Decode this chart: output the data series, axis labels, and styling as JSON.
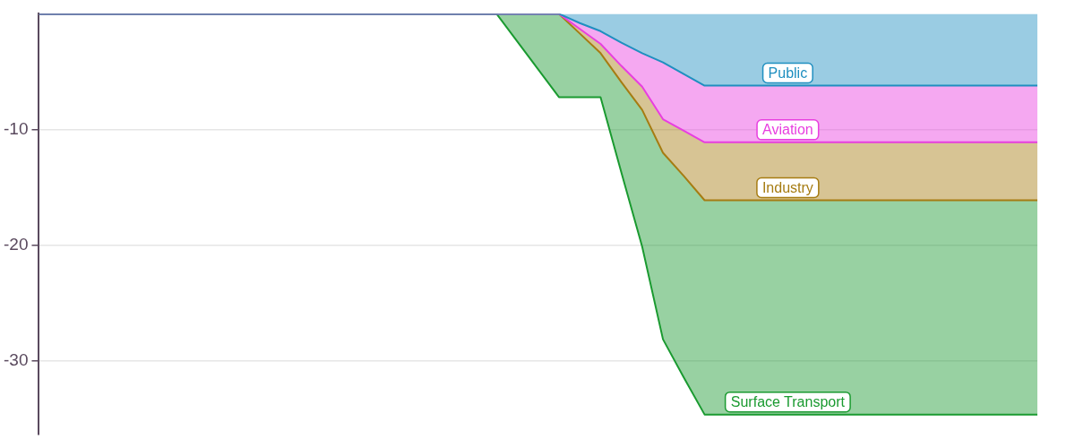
{
  "chart_data": {
    "type": "area",
    "stacked": true,
    "tick_labels": "y",
    "grid": "y",
    "legend": false,
    "categories": [
      null,
      null,
      null,
      null,
      null,
      null,
      null,
      null,
      null,
      null,
      null,
      null,
      null,
      null,
      null,
      null,
      null,
      null,
      null,
      null,
      null,
      null,
      null,
      null,
      null,
      null,
      null,
      null,
      null,
      null,
      null,
      null,
      null,
      null,
      null,
      null,
      null,
      null,
      null,
      null,
      null,
      null,
      null,
      null,
      null,
      null,
      null,
      null,
      null
    ],
    "ylim": [
      -36.3,
      0
    ],
    "yticks": [
      -30,
      -20,
      -10
    ],
    "series": [
      {
        "name": "Public",
        "color": "#1f8fc0",
        "values": [
          0,
          0,
          0,
          0,
          0,
          0,
          0,
          0,
          0,
          0,
          0,
          0,
          0,
          0,
          0,
          0,
          0,
          0,
          0,
          0,
          0,
          0,
          0,
          0,
          0,
          0,
          -0.8,
          -1.5,
          -2.5,
          -3.4,
          -4.2,
          -5.2,
          -6.2,
          -6.2,
          -6.2,
          -6.2,
          -6.2,
          -6.2,
          -6.2,
          -6.2,
          -6.2,
          -6.2,
          -6.2,
          -6.2,
          -6.2,
          -6.2,
          -6.2,
          -6.2,
          -6.2
        ]
      },
      {
        "name": "Aviation",
        "color": "#e83ee0",
        "values": [
          0,
          0,
          0,
          0,
          0,
          0,
          0,
          0,
          0,
          0,
          0,
          0,
          0,
          0,
          0,
          0,
          0,
          0,
          0,
          0,
          0,
          0,
          0,
          0,
          0,
          0,
          -0.5,
          -1.1,
          -2.0,
          -2.9,
          -4.9,
          -4.9,
          -4.9,
          -4.9,
          -4.9,
          -4.9,
          -4.9,
          -4.9,
          -4.9,
          -4.9,
          -4.9,
          -4.9,
          -4.9,
          -4.9,
          -4.9,
          -4.9,
          -4.9,
          -4.9,
          -4.9
        ]
      },
      {
        "name": "Industry",
        "color": "#a67c12",
        "values": [
          0,
          0,
          0,
          0,
          0,
          0,
          0,
          0,
          0,
          0,
          0,
          0,
          0,
          0,
          0,
          0,
          0,
          0,
          0,
          0,
          0,
          0,
          0,
          0,
          0,
          0,
          -0.4,
          -0.8,
          -1.4,
          -2.0,
          -2.9,
          -3.9,
          -5.0,
          -5.0,
          -5.0,
          -5.0,
          -5.0,
          -5.0,
          -5.0,
          -5.0,
          -5.0,
          -5.0,
          -5.0,
          -5.0,
          -5.0,
          -5.0,
          -5.0,
          -5.0,
          -5.0
        ]
      },
      {
        "name": "Surface Transport",
        "color": "#1a9a30",
        "values": [
          0,
          0,
          0,
          0,
          0,
          0,
          0,
          0,
          0,
          0,
          0,
          0,
          0,
          0,
          0,
          0,
          0,
          0,
          0,
          0,
          0,
          0,
          0,
          -2.4,
          -4.8,
          -7.2,
          -5.5,
          -3.8,
          -7.8,
          -11.8,
          -16.1,
          -17.4,
          -18.5,
          -18.5,
          -18.5,
          -18.5,
          -18.5,
          -18.5,
          -18.5,
          -18.5,
          -18.5,
          -18.5,
          -18.5,
          -18.5,
          -18.5,
          -18.5,
          -18.5,
          -18.5,
          -18.5
        ]
      }
    ]
  }
}
